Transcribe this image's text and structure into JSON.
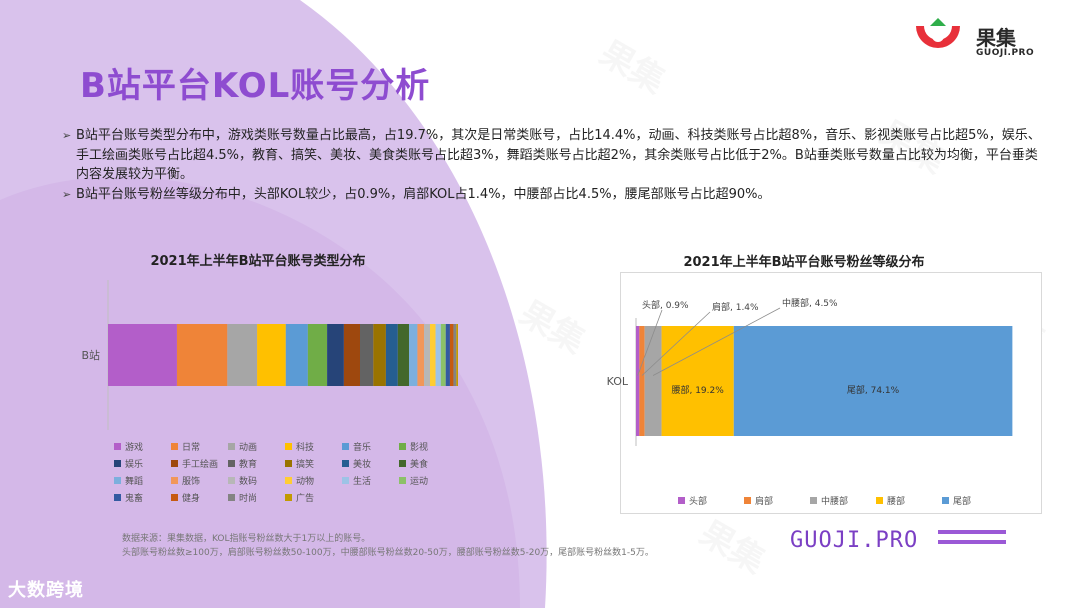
{
  "header": {
    "title": "B站平台KOL账号分析",
    "logo_name": "果集",
    "logo_sub": "GUOJI.PRO"
  },
  "bullets": [
    "B站平台账号类型分布中，游戏类账号数量占比最高，占19.7%，其次是日常类账号，占比14.4%，动画、科技类账号占比超8%，音乐、影视类账号占比超5%，娱乐、手工绘画类账号占比超4.5%，教育、搞笑、美妆、美食类账号占比超3%，舞蹈类账号占比超2%，其余类账号占比低于2%。B站垂类账号数量占比较为均衡，平台垂类内容发展较为平衡。",
    "B站平台账号粉丝等级分布中，头部KOL较少，占0.9%，肩部KOL占1.4%，中腰部占比4.5%，腰尾部账号占比超90%。"
  ],
  "chart_data": [
    {
      "type": "bar",
      "stacked": true,
      "orientation": "horizontal",
      "title": "2021年上半年B站平台账号类型分布",
      "categories": [
        "B站"
      ],
      "series": [
        {
          "name": "游戏",
          "color": "#b35ec9",
          "values": [
            19.7
          ]
        },
        {
          "name": "日常",
          "color": "#ef8438",
          "values": [
            14.4
          ]
        },
        {
          "name": "动画",
          "color": "#a6a6a6",
          "values": [
            8.5
          ]
        },
        {
          "name": "科技",
          "color": "#ffc000",
          "values": [
            8.2
          ]
        },
        {
          "name": "音乐",
          "color": "#5b9bd5",
          "values": [
            6.3
          ]
        },
        {
          "name": "影视",
          "color": "#70ad47",
          "values": [
            5.5
          ]
        },
        {
          "name": "娱乐",
          "color": "#264478",
          "values": [
            4.8
          ]
        },
        {
          "name": "手工绘画",
          "color": "#9e480e",
          "values": [
            4.6
          ]
        },
        {
          "name": "教育",
          "color": "#636363",
          "values": [
            3.8
          ]
        },
        {
          "name": "搞笑",
          "color": "#997300",
          "values": [
            3.6
          ]
        },
        {
          "name": "美妆",
          "color": "#255e91",
          "values": [
            3.4
          ]
        },
        {
          "name": "美食",
          "color": "#43682b",
          "values": [
            3.2
          ]
        },
        {
          "name": "舞蹈",
          "color": "#7cafdd",
          "values": [
            2.4
          ]
        },
        {
          "name": "服饰",
          "color": "#f1975a",
          "values": [
            1.9
          ]
        },
        {
          "name": "数码",
          "color": "#b7b7b7",
          "values": [
            1.7
          ]
        },
        {
          "name": "动物",
          "color": "#ffcd33",
          "values": [
            1.6
          ]
        },
        {
          "name": "生活",
          "color": "#9dc3e6",
          "values": [
            1.5
          ]
        },
        {
          "name": "运动",
          "color": "#8cc168",
          "values": [
            1.4
          ]
        },
        {
          "name": "鬼畜",
          "color": "#335aa1",
          "values": [
            1.2
          ]
        },
        {
          "name": "健身",
          "color": "#c65a11",
          "values": [
            1.0
          ]
        },
        {
          "name": "时尚",
          "color": "#838383",
          "values": [
            0.8
          ]
        },
        {
          "name": "广告",
          "color": "#c29a00",
          "values": [
            0.5
          ]
        }
      ],
      "legend": "bottom"
    },
    {
      "type": "bar",
      "stacked": true,
      "orientation": "horizontal",
      "title": "2021年上半年B站平台账号粉丝等级分布",
      "categories": [
        "KOL"
      ],
      "series": [
        {
          "name": "头部",
          "color": "#b35ec9",
          "values": [
            0.9
          ],
          "label": "头部, 0.9%"
        },
        {
          "name": "肩部",
          "color": "#ef8438",
          "values": [
            1.4
          ],
          "label": "肩部, 1.4%"
        },
        {
          "name": "中腰部",
          "color": "#a6a6a6",
          "values": [
            4.5
          ],
          "label": "中腰部, 4.5%"
        },
        {
          "name": "腰部",
          "color": "#ffc000",
          "values": [
            19.2
          ],
          "label": "腰部, 19.2%"
        },
        {
          "name": "尾部",
          "color": "#5b9bd5",
          "values": [
            74.1
          ],
          "label": "尾部, 74.1%"
        }
      ],
      "legend": "bottom"
    }
  ],
  "source": {
    "line1": "数据来源：果集数据，KOL指账号粉丝数大于1万以上的账号。",
    "line2": "头部账号粉丝数≥100万，肩部账号粉丝数50-100万，中腰部账号粉丝数20-50万，腰部账号粉丝数5-20万，尾部账号粉丝数1-5万。"
  },
  "footer": {
    "brand": "GUOJI.PRO",
    "bottom_logo": "大数跨境"
  }
}
